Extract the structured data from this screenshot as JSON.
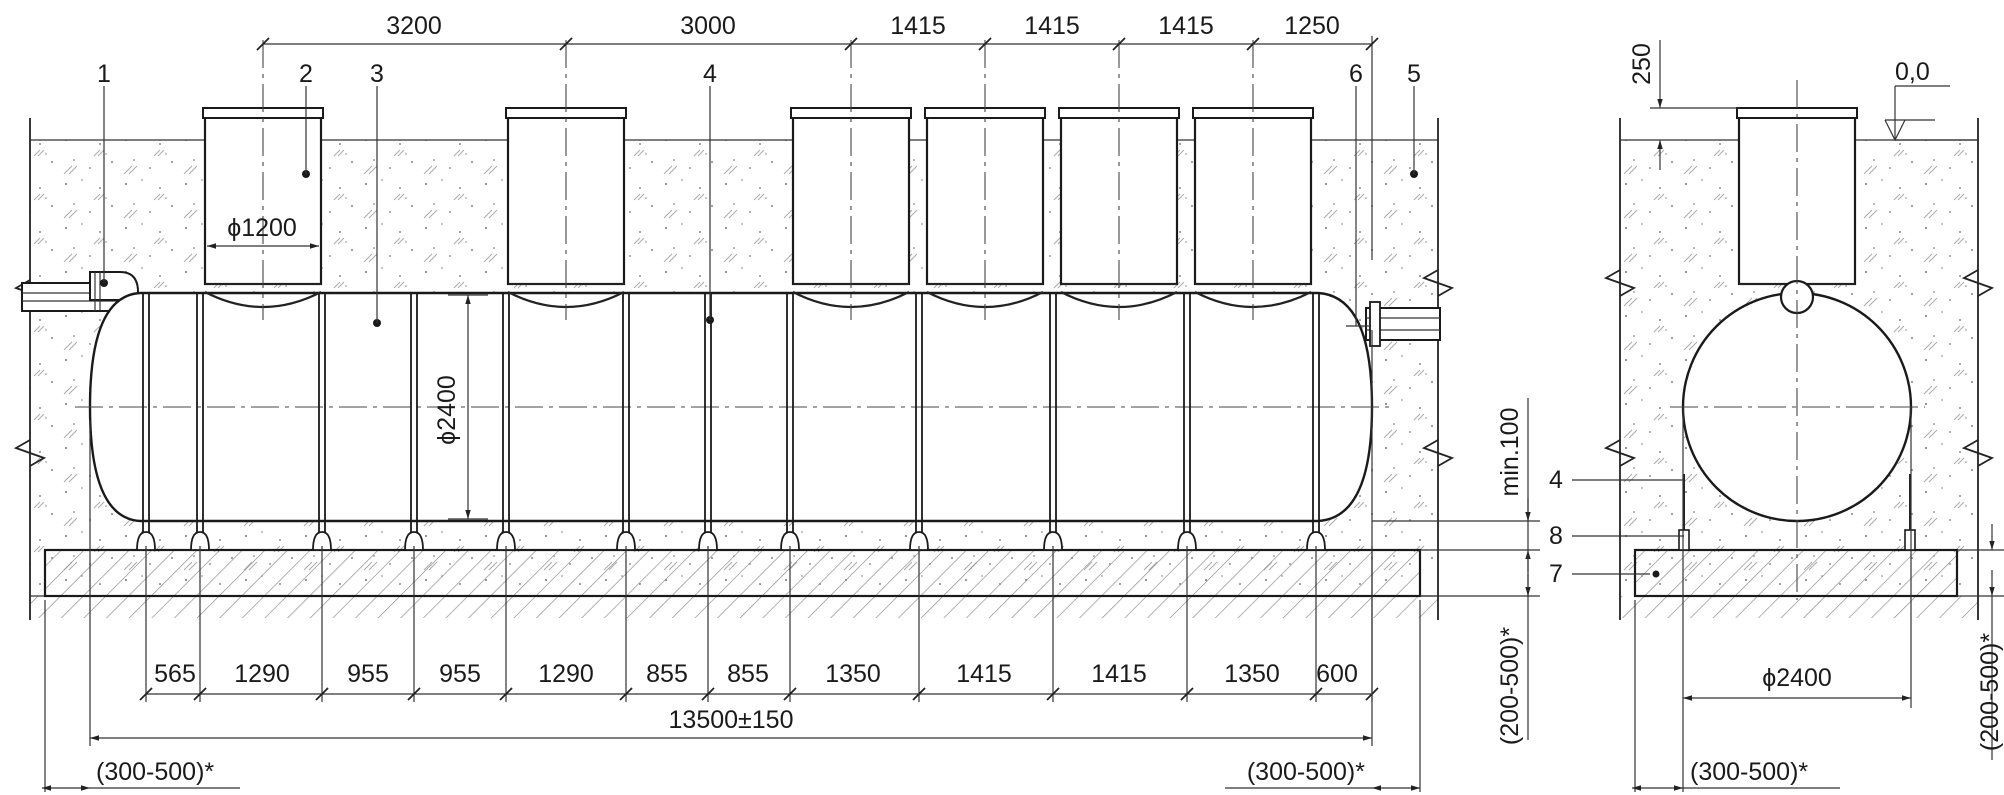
{
  "labels": {
    "callouts": [
      "1",
      "2",
      "3",
      "4",
      "5",
      "6"
    ],
    "side_callouts": [
      "4",
      "8",
      "7"
    ],
    "zero_mark": "0,0"
  },
  "dims": {
    "top": [
      "3200",
      "3000",
      "1415",
      "1415",
      "1415",
      "1250"
    ],
    "bottom": [
      "565",
      "1290",
      "955",
      "955",
      "1290",
      "855",
      "855",
      "1350",
      "1415",
      "1415",
      "1350",
      "600"
    ],
    "total": "13500±150",
    "gap_left": "(300-500)*",
    "gap_right": "(300-500)*",
    "neck_diameter": "ϕ1200",
    "tank_diameter": "ϕ2400",
    "min_clearance": "min.100",
    "slab_vertical": "(200-500)*",
    "cover_depth": "250",
    "side_diameter": "ϕ2400",
    "side_gap": "(300-500)*",
    "side_slab_vertical": "(200-500)*"
  }
}
